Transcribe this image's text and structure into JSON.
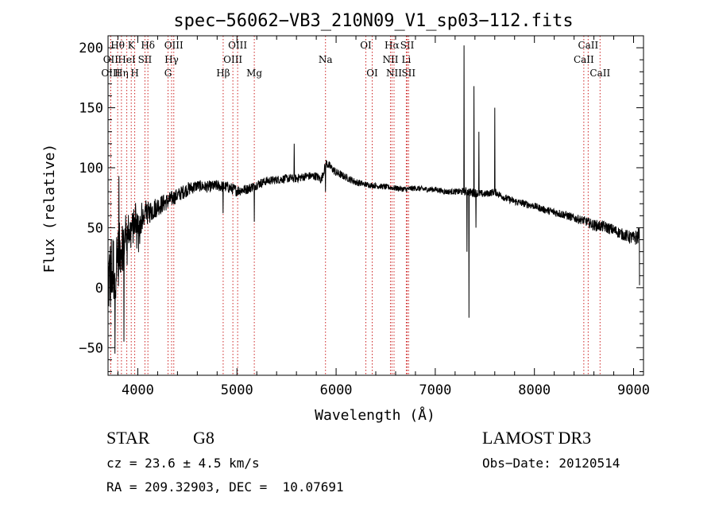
{
  "chart_data": {
    "type": "line",
    "title": "spec−56062−VB3_210N09_V1_sp03−112.fits",
    "xlabel": "Wavelength (Å)",
    "ylabel": "Flux (relative)",
    "xlim": [
      3700,
      9100
    ],
    "ylim": [
      -73,
      210
    ],
    "x_ticks": [
      4000,
      5000,
      6000,
      7000,
      8000,
      9000
    ],
    "y_ticks": [
      -50,
      0,
      50,
      100,
      150,
      200
    ],
    "x_tick_labels": [
      "4000",
      "5000",
      "6000",
      "7000",
      "8000",
      "9000"
    ],
    "y_tick_labels": [
      "−50",
      "0",
      "50",
      "100",
      "150",
      "200"
    ],
    "spectrum_anchors": {
      "x": [
        3700,
        3750,
        3800,
        3850,
        3900,
        3950,
        4000,
        4050,
        4100,
        4150,
        4200,
        4300,
        4400,
        4500,
        4600,
        4700,
        4800,
        4900,
        5000,
        5100,
        5200,
        5300,
        5400,
        5500,
        5600,
        5700,
        5800,
        5850,
        5900,
        5950,
        6000,
        6100,
        6200,
        6300,
        6400,
        6500,
        6600,
        6700,
        6800,
        6900,
        7000,
        7100,
        7200,
        7300,
        7400,
        7500,
        7600,
        7700,
        7800,
        7900,
        8000,
        8100,
        8200,
        8300,
        8400,
        8500,
        8600,
        8700,
        8800,
        8900,
        9000,
        9050
      ],
      "y": [
        5,
        15,
        25,
        40,
        45,
        50,
        52,
        55,
        62,
        65,
        68,
        72,
        77,
        82,
        85,
        84,
        85,
        84,
        81,
        82,
        86,
        89,
        90,
        91,
        91,
        93,
        93,
        90,
        104,
        100,
        96,
        92,
        88,
        86,
        85,
        84,
        83,
        82,
        83,
        82,
        82,
        80,
        80,
        80,
        79,
        78,
        80,
        75,
        72,
        70,
        68,
        65,
        63,
        61,
        58,
        56,
        52,
        51,
        48,
        44,
        41,
        43
      ],
      "noise": [
        28,
        28,
        22,
        18,
        14,
        12,
        10,
        9,
        8,
        8,
        7,
        6,
        5,
        5,
        4,
        4,
        4,
        4,
        4,
        3.5,
        3.5,
        3,
        3,
        3,
        3,
        3,
        3,
        3,
        3,
        3,
        3,
        2.5,
        2.5,
        2,
        2,
        2,
        2,
        2,
        2,
        2,
        2,
        2,
        2,
        3,
        3,
        2.5,
        2.5,
        2.5,
        2.5,
        2.5,
        2.5,
        2.5,
        3,
        3,
        3,
        3,
        4,
        4,
        4,
        4,
        5,
        6
      ]
    },
    "spectrum_features": [
      {
        "x": 3770,
        "y": -55
      },
      {
        "x": 3810,
        "y": 93
      },
      {
        "x": 3860,
        "y": -45
      },
      {
        "x": 4860,
        "y": 62
      },
      {
        "x": 5175,
        "y": 55
      },
      {
        "x": 5577,
        "y": 120
      },
      {
        "x": 5893,
        "y": 80
      },
      {
        "x": 7290,
        "y": 202
      },
      {
        "x": 7320,
        "y": 30
      },
      {
        "x": 7340,
        "y": -25
      },
      {
        "x": 7390,
        "y": 168
      },
      {
        "x": 7410,
        "y": 50
      },
      {
        "x": 7440,
        "y": 130
      },
      {
        "x": 7600,
        "y": 150
      },
      {
        "x": 9060,
        "y": 2
      }
    ],
    "spectral_lines": [
      {
        "label": "Hθ",
        "x": 3797,
        "row": 0
      },
      {
        "label": "OII",
        "x": 3727,
        "row": 1
      },
      {
        "label": "OIII",
        "x": 3727,
        "row": 2
      },
      {
        "label": "K",
        "x": 3934,
        "row": 0
      },
      {
        "label": "HeI",
        "x": 3889,
        "row": 1
      },
      {
        "label": "Hη",
        "x": 3835,
        "row": 2
      },
      {
        "label": "Hδ",
        "x": 4102,
        "row": 0
      },
      {
        "label": "SII",
        "x": 4072,
        "row": 1
      },
      {
        "label": "H",
        "x": 3969,
        "row": 2
      },
      {
        "label": "OIII",
        "x": 4363,
        "row": 0
      },
      {
        "label": "Hγ",
        "x": 4341,
        "row": 1
      },
      {
        "label": "G",
        "x": 4305,
        "row": 2
      },
      {
        "label": "OIII",
        "x": 5007,
        "row": 0
      },
      {
        "label": "OIII",
        "x": 4959,
        "row": 1
      },
      {
        "label": "Hβ",
        "x": 4861,
        "row": 2
      },
      {
        "label": "Mg",
        "x": 5175,
        "row": 2
      },
      {
        "label": "Na",
        "x": 5893,
        "row": 1
      },
      {
        "label": "OI",
        "x": 6300,
        "row": 0
      },
      {
        "label": "OI",
        "x": 6364,
        "row": 2
      },
      {
        "label": "Hα",
        "x": 6563,
        "row": 0
      },
      {
        "label": "NII",
        "x": 6548,
        "row": 1
      },
      {
        "label": "NII",
        "x": 6584,
        "row": 2
      },
      {
        "label": "SII",
        "x": 6717,
        "row": 0
      },
      {
        "label": "Li",
        "x": 6708,
        "row": 1
      },
      {
        "label": "SII",
        "x": 6731,
        "row": 2
      },
      {
        "label": "CaII",
        "x": 8542,
        "row": 0
      },
      {
        "label": "CaII",
        "x": 8498,
        "row": 1
      },
      {
        "label": "CaII",
        "x": 8662,
        "row": 2
      }
    ]
  },
  "info": {
    "class": "STAR",
    "subclass": "G8",
    "survey": "LAMOST DR3",
    "redshift": "cz = 23.6 ± 4.5 km/s",
    "obs_date": "Obs−Date: 20120514",
    "coords": "RA = 209.32903, DEC =  10.07691"
  }
}
